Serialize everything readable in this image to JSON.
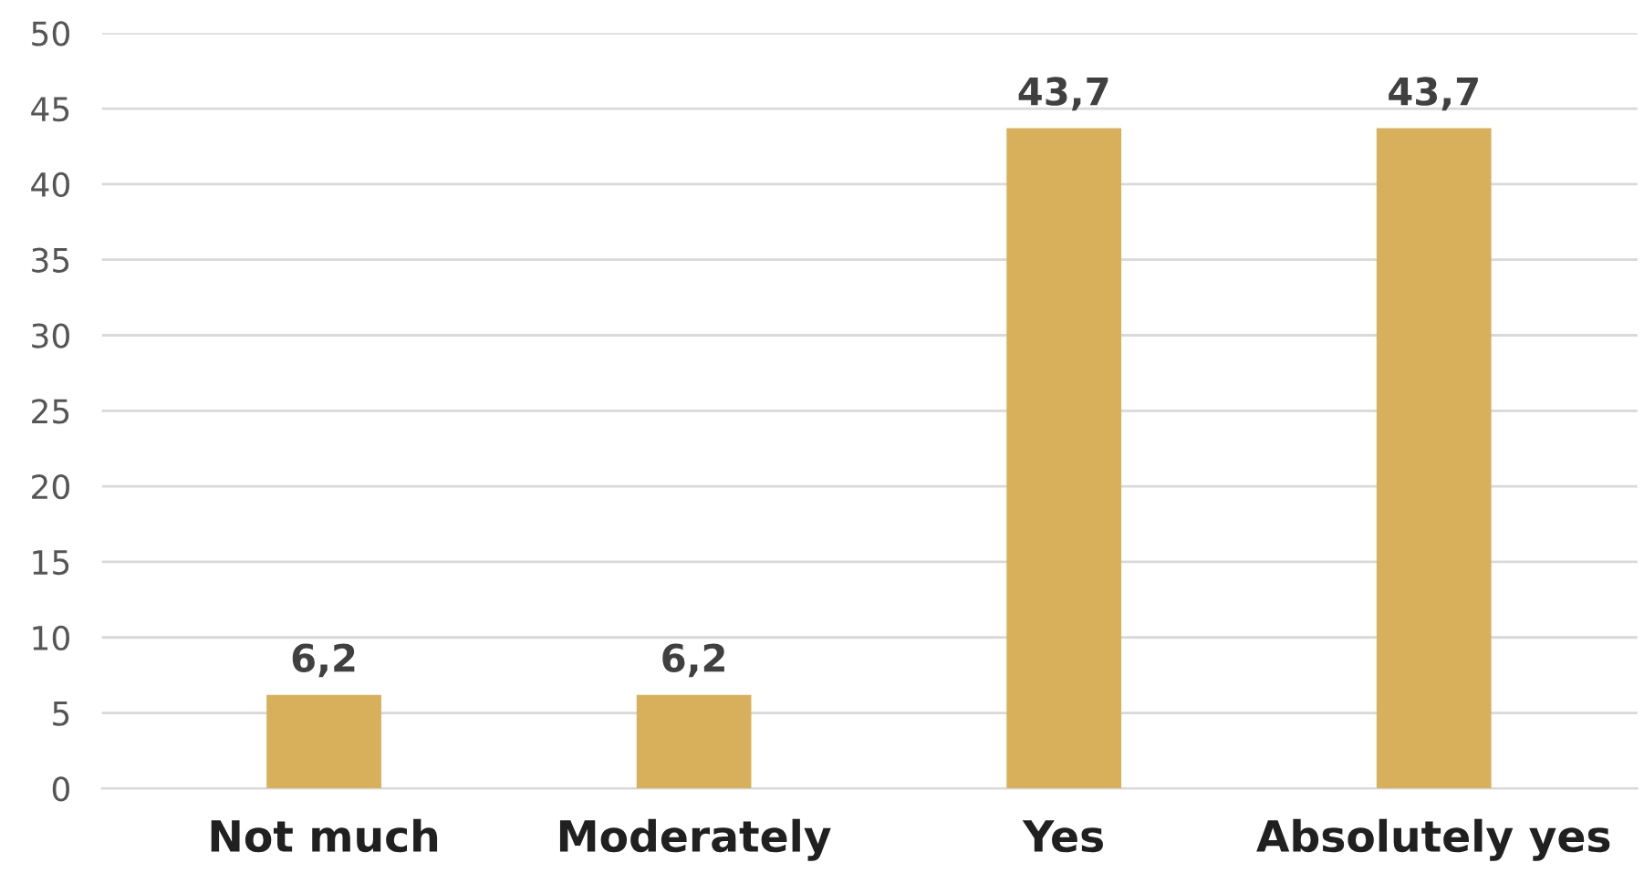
{
  "chart_data": {
    "type": "bar",
    "categories": [
      "Not much",
      "Moderately",
      "Yes",
      "Absolutely yes"
    ],
    "values": [
      6.2,
      6.2,
      43.7,
      43.7
    ],
    "color": "#d8b05c",
    "value_labels": [
      "6,2",
      "6,2",
      "43,7",
      "43,7"
    ],
    "ylim": [
      0,
      50
    ],
    "yticks": [
      0,
      5,
      10,
      15,
      20,
      25,
      30,
      35,
      40,
      45,
      50
    ],
    "grid": "y"
  }
}
